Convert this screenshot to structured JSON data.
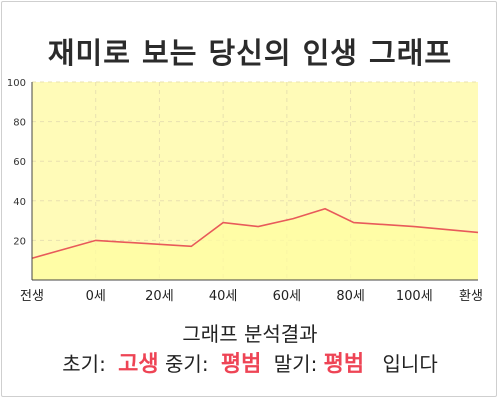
{
  "title": "재미로 보는 당신의 인생 그래프",
  "chart_data": {
    "type": "area",
    "x_labels": [
      "전생",
      "0세",
      "20세",
      "40세",
      "60세",
      "80세",
      "100세",
      "환생"
    ],
    "x": [
      -20,
      0,
      20,
      40,
      60,
      80,
      100,
      120
    ],
    "points": [
      {
        "x": -20,
        "y": 11
      },
      {
        "x": 0,
        "y": 20
      },
      {
        "x": 30,
        "y": 17
      },
      {
        "x": 40,
        "y": 29
      },
      {
        "x": 51,
        "y": 27
      },
      {
        "x": 62,
        "y": 31
      },
      {
        "x": 72,
        "y": 36
      },
      {
        "x": 81,
        "y": 29
      },
      {
        "x": 100,
        "y": 27
      },
      {
        "x": 120,
        "y": 24
      }
    ],
    "ylim": [
      0,
      100
    ],
    "yticks": [
      20,
      40,
      60,
      80,
      100
    ],
    "grid": true,
    "colors": {
      "line": "#e85a5a",
      "fill": "#fffbb8",
      "grid": "#e8e0b0"
    }
  },
  "analysis": {
    "heading": "그래프 분석결과",
    "early_label": "초기:",
    "early_value": "고생",
    "middle_label": "중기:",
    "middle_value": "평범",
    "late_label": "말기:",
    "late_value": "평범",
    "suffix": "입니다"
  }
}
